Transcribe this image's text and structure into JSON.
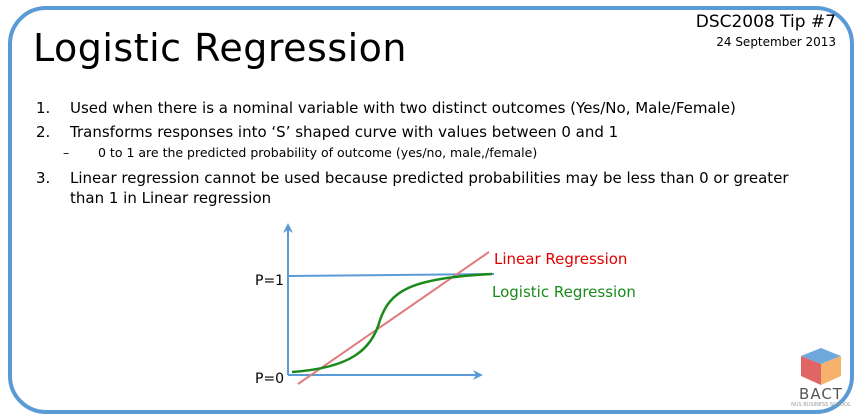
{
  "header": {
    "title": "Logistic Regression",
    "tip": "DSC2008 Tip #7",
    "date": "24 September 2013"
  },
  "points": [
    {
      "num": "1.",
      "text": "Used when there is a nominal variable with two distinct outcomes (Yes/No, Male/Female)"
    },
    {
      "num": "2.",
      "text": "Transforms responses into ‘S’ shaped curve with values between 0 and 1"
    },
    {
      "dash": "–",
      "text": "0 to 1 are the predicted probability of outcome (yes/no, male,/female)"
    },
    {
      "num": "3.",
      "text": "Linear regression cannot be used because predicted probabilities may be less than 0 or greater than 1 in Linear regression"
    }
  ],
  "diagram": {
    "y_top_label": "P=1",
    "y_bottom_label": "P=0",
    "linear_label": "Linear Regression",
    "logistic_label": "Logistic Regression",
    "colors": {
      "axis": "#5b9bd5",
      "linear": "#e07b7b",
      "logistic": "#1a8a1a",
      "linear_text": "#e00000",
      "logistic_text": "#1a8a1a"
    }
  },
  "logo": {
    "text": "BACT",
    "sub": "NUS BUSINESS SCHOOL"
  }
}
